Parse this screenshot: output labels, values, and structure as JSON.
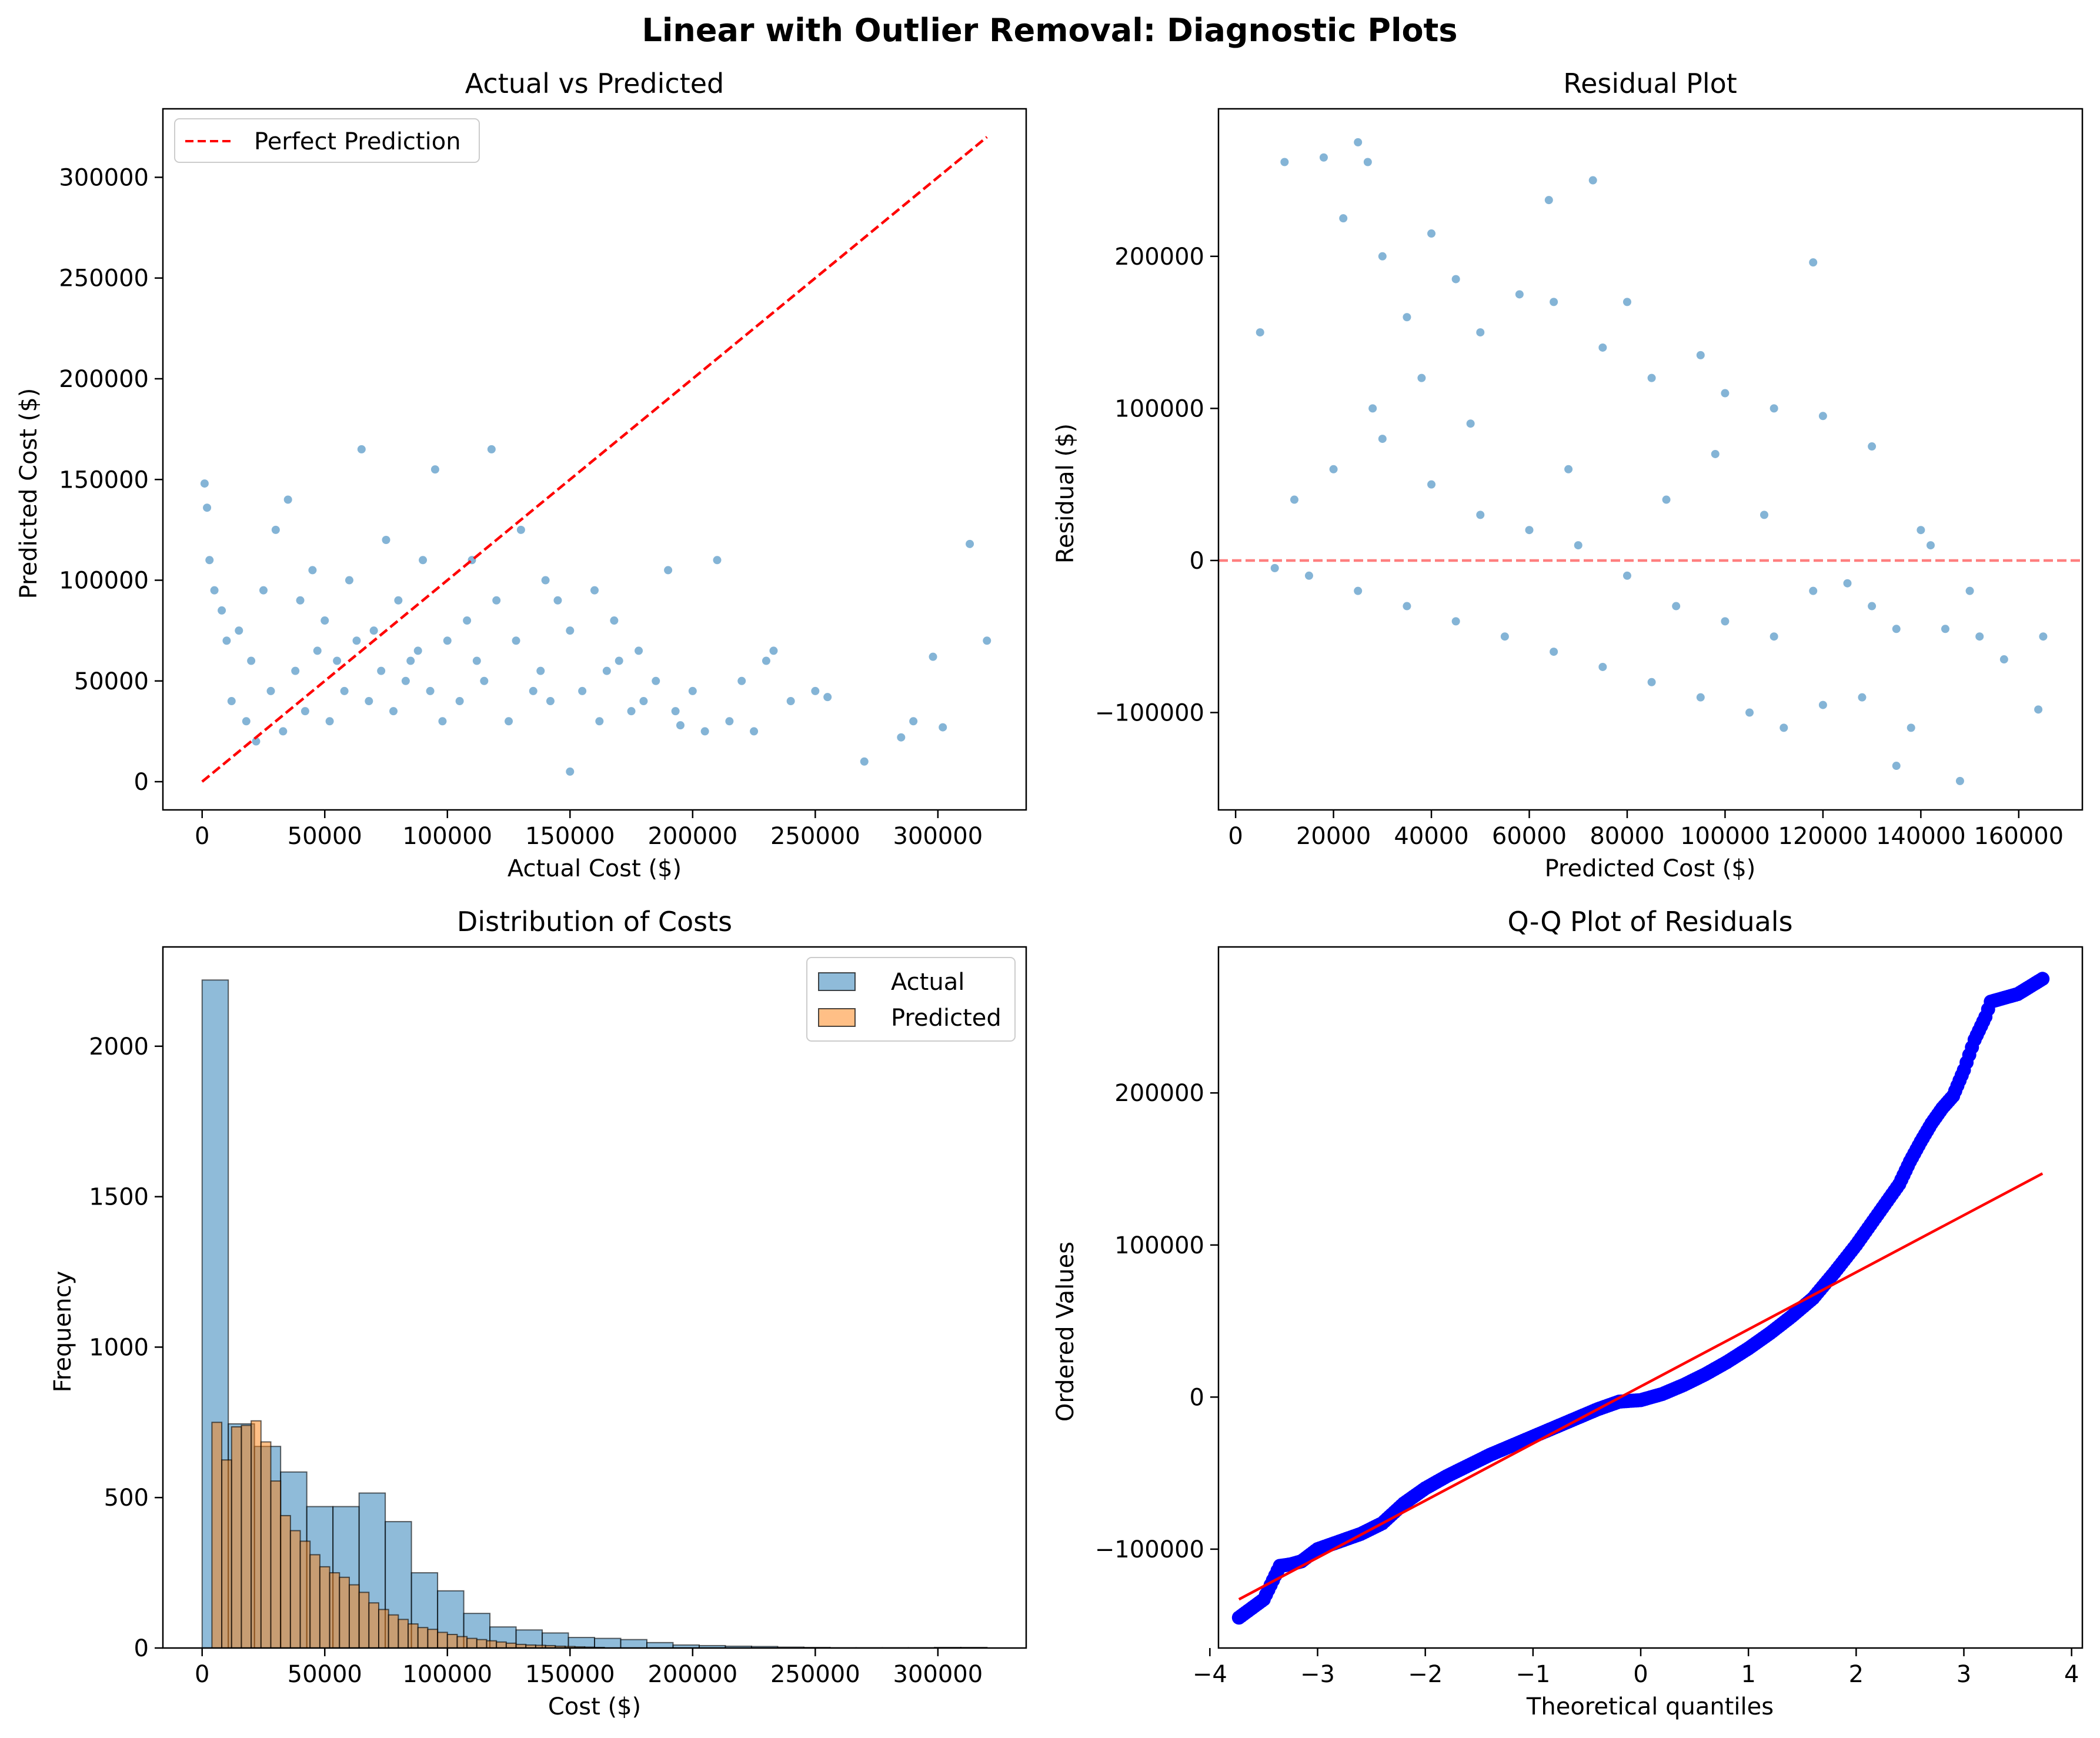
{
  "figure": {
    "title": "Linear with Outlier Removal: Diagnostic Plots"
  },
  "colors": {
    "scatter": "#1f77b4",
    "perfect_line": "#ff0000",
    "zero_line": "#ff0000",
    "hist_actual": "#1f77b4",
    "hist_predicted": "#ff7f0e",
    "qq_points": "#0000ff",
    "qq_line": "#ff0000"
  },
  "chart_data": [
    {
      "id": "actual_vs_predicted",
      "type": "scatter",
      "title": "Actual vs Predicted",
      "xlabel": "Actual Cost ($)",
      "ylabel": "Predicted Cost ($)",
      "xlim": [
        -16000,
        336000
      ],
      "ylim": [
        -14000,
        334000
      ],
      "xticks": [
        0,
        50000,
        100000,
        150000,
        200000,
        250000,
        300000
      ],
      "yticks": [
        0,
        50000,
        100000,
        150000,
        200000,
        250000,
        300000
      ],
      "grid": false,
      "legend": {
        "position": "upper-left",
        "entries": [
          "Perfect Prediction"
        ]
      },
      "series": [
        {
          "name": "Perfect Prediction",
          "kind": "dashed-line",
          "x": [
            0,
            320000
          ],
          "y": [
            0,
            320000
          ]
        }
      ],
      "points": [
        [
          1000,
          148000
        ],
        [
          2000,
          136000
        ],
        [
          3000,
          110000
        ],
        [
          5000,
          95000
        ],
        [
          8000,
          85000
        ],
        [
          15000,
          75000
        ],
        [
          20000,
          60000
        ],
        [
          25000,
          95000
        ],
        [
          30000,
          125000
        ],
        [
          40000,
          90000
        ],
        [
          45000,
          105000
        ],
        [
          50000,
          80000
        ],
        [
          55000,
          60000
        ],
        [
          60000,
          100000
        ],
        [
          65000,
          165000
        ],
        [
          70000,
          75000
        ],
        [
          75000,
          120000
        ],
        [
          80000,
          90000
        ],
        [
          85000,
          60000
        ],
        [
          90000,
          110000
        ],
        [
          95000,
          155000
        ],
        [
          100000,
          70000
        ],
        [
          110000,
          110000
        ],
        [
          118000,
          165000
        ],
        [
          120000,
          90000
        ],
        [
          130000,
          125000
        ],
        [
          140000,
          100000
        ],
        [
          150000,
          75000
        ],
        [
          160000,
          95000
        ],
        [
          170000,
          60000
        ],
        [
          180000,
          40000
        ],
        [
          190000,
          105000
        ],
        [
          200000,
          45000
        ],
        [
          210000,
          110000
        ],
        [
          220000,
          50000
        ],
        [
          230000,
          60000
        ],
        [
          240000,
          40000
        ],
        [
          250000,
          45000
        ],
        [
          255000,
          42000
        ],
        [
          270000,
          10000
        ],
        [
          285000,
          22000
        ],
        [
          290000,
          30000
        ],
        [
          298000,
          62000
        ],
        [
          302000,
          27000
        ],
        [
          313000,
          118000
        ],
        [
          320000,
          70000
        ],
        [
          150000,
          5000
        ],
        [
          205000,
          25000
        ],
        [
          195000,
          28000
        ],
        [
          175000,
          35000
        ],
        [
          165000,
          55000
        ],
        [
          145000,
          90000
        ],
        [
          135000,
          45000
        ],
        [
          125000,
          30000
        ],
        [
          115000,
          50000
        ],
        [
          105000,
          40000
        ],
        [
          35000,
          140000
        ],
        [
          10000,
          70000
        ],
        [
          12000,
          40000
        ],
        [
          18000,
          30000
        ],
        [
          22000,
          20000
        ],
        [
          28000,
          45000
        ],
        [
          33000,
          25000
        ],
        [
          38000,
          55000
        ],
        [
          42000,
          35000
        ],
        [
          47000,
          65000
        ],
        [
          52000,
          30000
        ],
        [
          58000,
          45000
        ],
        [
          63000,
          70000
        ],
        [
          68000,
          40000
        ],
        [
          73000,
          55000
        ],
        [
          78000,
          35000
        ],
        [
          83000,
          50000
        ],
        [
          88000,
          65000
        ],
        [
          93000,
          45000
        ],
        [
          98000,
          30000
        ],
        [
          108000,
          80000
        ],
        [
          112000,
          60000
        ],
        [
          128000,
          70000
        ],
        [
          138000,
          55000
        ],
        [
          142000,
          40000
        ],
        [
          155000,
          45000
        ],
        [
          162000,
          30000
        ],
        [
          168000,
          80000
        ],
        [
          178000,
          65000
        ],
        [
          185000,
          50000
        ],
        [
          193000,
          35000
        ],
        [
          215000,
          30000
        ],
        [
          225000,
          25000
        ],
        [
          233000,
          65000
        ]
      ],
      "notes": "Dense cloud of several thousand points concentrated at actual 0-130000, predicted 5000-120000; representative subset listed."
    },
    {
      "id": "residual_plot",
      "type": "scatter",
      "title": "Residual Plot",
      "xlabel": "Predicted Cost ($)",
      "ylabel": "Residual ($)",
      "xlim": [
        -3500,
        173000
      ],
      "ylim": [
        -164000,
        297000
      ],
      "xticks": [
        0,
        20000,
        40000,
        60000,
        80000,
        100000,
        120000,
        140000,
        160000
      ],
      "yticks": [
        -100000,
        0,
        100000,
        200000
      ],
      "grid": false,
      "reference_line": {
        "y": 0,
        "style": "dashed"
      },
      "points": [
        [
          5000,
          150000
        ],
        [
          10000,
          262000
        ],
        [
          18000,
          265000
        ],
        [
          25000,
          275000
        ],
        [
          27000,
          262000
        ],
        [
          64000,
          237000
        ],
        [
          73000,
          250000
        ],
        [
          22000,
          225000
        ],
        [
          40000,
          215000
        ],
        [
          118000,
          196000
        ],
        [
          30000,
          200000
        ],
        [
          45000,
          185000
        ],
        [
          58000,
          175000
        ],
        [
          65000,
          170000
        ],
        [
          80000,
          170000
        ],
        [
          35000,
          160000
        ],
        [
          50000,
          150000
        ],
        [
          75000,
          140000
        ],
        [
          95000,
          135000
        ],
        [
          85000,
          120000
        ],
        [
          100000,
          110000
        ],
        [
          110000,
          100000
        ],
        [
          120000,
          95000
        ],
        [
          130000,
          75000
        ],
        [
          140000,
          20000
        ],
        [
          142000,
          10000
        ],
        [
          125000,
          -15000
        ],
        [
          130000,
          -30000
        ],
        [
          135000,
          -45000
        ],
        [
          145000,
          -45000
        ],
        [
          150000,
          -20000
        ],
        [
          152000,
          -50000
        ],
        [
          157000,
          -65000
        ],
        [
          165000,
          -50000
        ],
        [
          164000,
          -98000
        ],
        [
          148000,
          -145000
        ],
        [
          138000,
          -110000
        ],
        [
          135000,
          -135000
        ],
        [
          128000,
          -90000
        ],
        [
          120000,
          -95000
        ],
        [
          112000,
          -110000
        ],
        [
          105000,
          -100000
        ],
        [
          95000,
          -90000
        ],
        [
          85000,
          -80000
        ],
        [
          75000,
          -70000
        ],
        [
          65000,
          -60000
        ],
        [
          55000,
          -50000
        ],
        [
          45000,
          -40000
        ],
        [
          35000,
          -30000
        ],
        [
          25000,
          -20000
        ],
        [
          15000,
          -10000
        ],
        [
          8000,
          -5000
        ],
        [
          20000,
          60000
        ],
        [
          30000,
          80000
        ],
        [
          40000,
          50000
        ],
        [
          50000,
          30000
        ],
        [
          60000,
          20000
        ],
        [
          70000,
          10000
        ],
        [
          80000,
          -10000
        ],
        [
          90000,
          -30000
        ],
        [
          100000,
          -40000
        ],
        [
          110000,
          -50000
        ],
        [
          12000,
          40000
        ],
        [
          28000,
          100000
        ],
        [
          38000,
          120000
        ],
        [
          48000,
          90000
        ],
        [
          68000,
          60000
        ],
        [
          88000,
          40000
        ],
        [
          98000,
          70000
        ],
        [
          108000,
          30000
        ],
        [
          118000,
          -20000
        ]
      ],
      "notes": "Lower envelope follows residual = -(predicted - 5000); dense cloud at predicted 5000-80000."
    },
    {
      "id": "distribution_of_costs",
      "type": "bar",
      "title": "Distribution of Costs",
      "xlabel": "Cost ($)",
      "ylabel": "Frequency",
      "xlim": [
        -16000,
        336000
      ],
      "ylim": [
        0,
        2330
      ],
      "xticks": [
        0,
        50000,
        100000,
        150000,
        200000,
        250000,
        300000
      ],
      "yticks": [
        0,
        500,
        1000,
        1500,
        2000
      ],
      "grid": false,
      "legend": {
        "position": "upper-right",
        "entries": [
          "Actual",
          "Predicted"
        ]
      },
      "series": [
        {
          "name": "Actual",
          "bin_start": 0,
          "bin_width": 10667,
          "values": [
            2220,
            745,
            670,
            585,
            470,
            470,
            515,
            420,
            250,
            190,
            115,
            70,
            60,
            50,
            35,
            32,
            28,
            18,
            10,
            8,
            6,
            5,
            3,
            2,
            1,
            1,
            1,
            1,
            2,
            2
          ]
        },
        {
          "name": "Predicted",
          "bin_start": 4000,
          "bin_width": 4000,
          "values": [
            750,
            625,
            735,
            740,
            755,
            685,
            555,
            440,
            390,
            355,
            310,
            270,
            250,
            235,
            210,
            185,
            150,
            128,
            110,
            95,
            80,
            68,
            62,
            52,
            45,
            38,
            32,
            28,
            24,
            20,
            16,
            12,
            10,
            9,
            8,
            6,
            5,
            4,
            3,
            2
          ]
        }
      ]
    },
    {
      "id": "qq_plot",
      "type": "scatter",
      "title": "Q-Q Plot of Residuals",
      "xlabel": "Theoretical quantiles",
      "ylabel": "Ordered Values",
      "xlim": [
        -3.92,
        4.1
      ],
      "ylim": [
        -165000,
        296000
      ],
      "xticks": [
        -4,
        -3,
        -2,
        -1,
        0,
        1,
        2,
        3,
        4
      ],
      "yticks": [
        -100000,
        0,
        100000,
        200000
      ],
      "grid": false,
      "fit_line": {
        "x": [
          -3.73,
          3.73
        ],
        "y": [
          -133000,
          147000
        ]
      },
      "points": [
        [
          -3.73,
          -145000
        ],
        [
          -3.5,
          -133000
        ],
        [
          -3.35,
          -111000
        ],
        [
          -3.25,
          -110000
        ],
        [
          -3.15,
          -108000
        ],
        [
          -3.0,
          -100000
        ],
        [
          -2.8,
          -95000
        ],
        [
          -2.6,
          -90000
        ],
        [
          -2.4,
          -83000
        ],
        [
          -2.2,
          -70000
        ],
        [
          -2.0,
          -60000
        ],
        [
          -1.8,
          -52000
        ],
        [
          -1.6,
          -45000
        ],
        [
          -1.4,
          -38000
        ],
        [
          -1.2,
          -32000
        ],
        [
          -1.0,
          -26000
        ],
        [
          -0.8,
          -20000
        ],
        [
          -0.6,
          -14000
        ],
        [
          -0.4,
          -8000
        ],
        [
          -0.2,
          -3000
        ],
        [
          0.0,
          -2000
        ],
        [
          0.2,
          2000
        ],
        [
          0.4,
          8000
        ],
        [
          0.6,
          15000
        ],
        [
          0.8,
          23000
        ],
        [
          1.0,
          32000
        ],
        [
          1.2,
          42000
        ],
        [
          1.4,
          53000
        ],
        [
          1.6,
          65000
        ],
        [
          1.8,
          82000
        ],
        [
          2.0,
          100000
        ],
        [
          2.2,
          120000
        ],
        [
          2.4,
          140000
        ],
        [
          2.5,
          155000
        ],
        [
          2.6,
          168000
        ],
        [
          2.7,
          180000
        ],
        [
          2.8,
          190000
        ],
        [
          2.9,
          198000
        ],
        [
          3.0,
          215000
        ],
        [
          3.05,
          225000
        ],
        [
          3.1,
          235000
        ],
        [
          3.2,
          250000
        ],
        [
          3.25,
          260000
        ],
        [
          3.35,
          262000
        ],
        [
          3.5,
          265000
        ],
        [
          3.73,
          275000
        ]
      ]
    }
  ]
}
